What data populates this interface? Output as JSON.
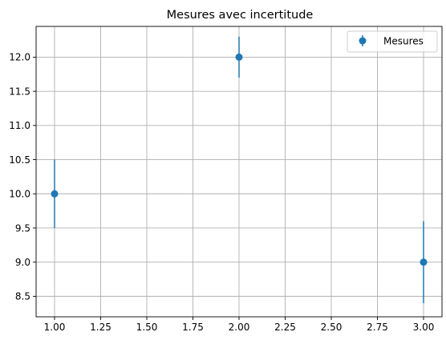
{
  "chart_data": {
    "type": "scatter",
    "title": "Mesures avec incertitude",
    "xlabel": "",
    "ylabel": "",
    "xlim": [
      0.9,
      3.1
    ],
    "ylim": [
      8.2,
      12.45
    ],
    "grid": true,
    "legend_position": "top-right",
    "x_ticks": [
      1.0,
      1.25,
      1.5,
      1.75,
      2.0,
      2.25,
      2.5,
      2.75,
      3.0
    ],
    "x_tick_labels": [
      "1.00",
      "1.25",
      "1.50",
      "1.75",
      "2.00",
      "2.25",
      "2.50",
      "2.75",
      "3.00"
    ],
    "y_ticks": [
      8.5,
      9.0,
      9.5,
      10.0,
      10.5,
      11.0,
      11.5,
      12.0
    ],
    "y_tick_labels": [
      "8.5",
      "9.0",
      "9.5",
      "10.0",
      "10.5",
      "11.0",
      "11.5",
      "12.0"
    ],
    "series": [
      {
        "name": "Mesures",
        "color": "#1f77b4",
        "x": [
          1,
          2,
          3
        ],
        "y": [
          10.0,
          12.0,
          9.0
        ],
        "yerr": [
          0.5,
          0.3,
          0.6
        ]
      }
    ]
  }
}
